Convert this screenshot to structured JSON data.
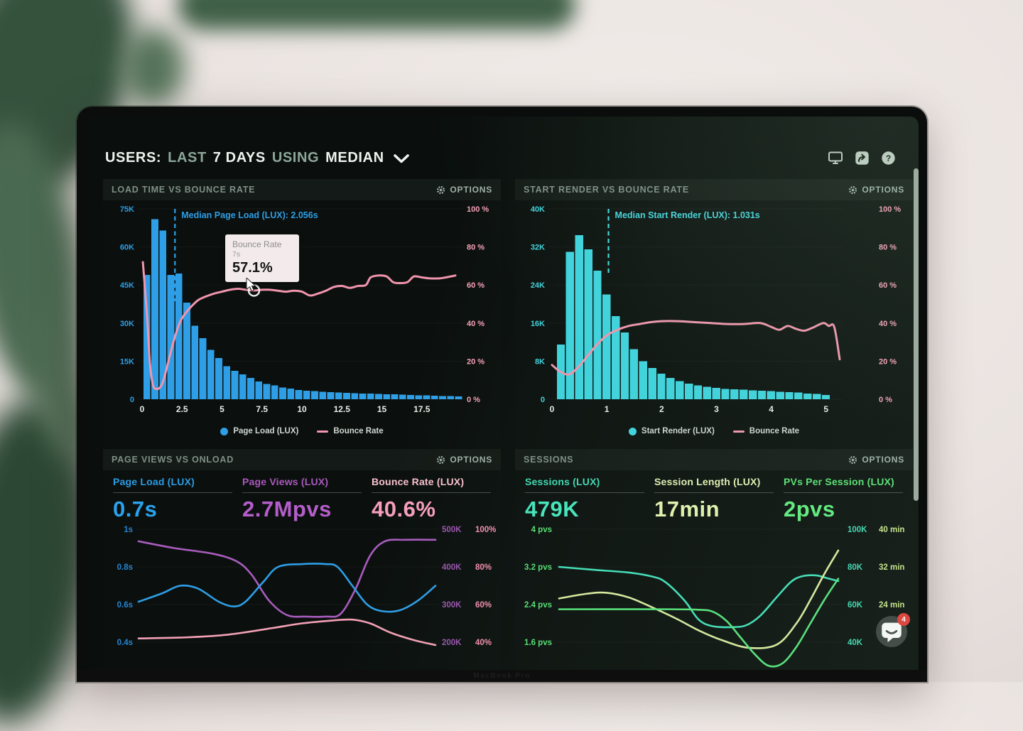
{
  "laptop": {
    "brand_label": "MacBook Pro"
  },
  "header": {
    "title_users": "USERS:",
    "title_last": "LAST",
    "title_days": "7 DAYS",
    "title_using": "USING",
    "title_median": "MEDIAN",
    "icons": {
      "monitor": "display-screen",
      "share": "share-arrow",
      "help": "question-mark",
      "chevron": "chevron-down",
      "options": "gear",
      "chat": "speech-bubble"
    }
  },
  "colors": {
    "blue": "#2e9ee6",
    "cyan": "#3ed4df",
    "pink_line": "#f295ae",
    "pink_label": "#f6a0b8",
    "purple": "#ac58c2",
    "teal": "#41e0b8",
    "yellow_green": "#dcedaa",
    "green": "#5ee573",
    "badge_red": "#e33b36",
    "panel_title": "#7e8f87",
    "screen_bg": "#0a0f0d"
  },
  "panels": {
    "load_time": {
      "title": "LOAD TIME VS BOUNCE RATE",
      "options": "OPTIONS",
      "annotation": "Median Page Load (LUX): 2.056s",
      "tooltip": {
        "series": "Bounce Rate",
        "x": "7s",
        "value": "57.1%"
      },
      "legend": [
        {
          "label": "Page Load (LUX)",
          "color": "#2e9ee6"
        },
        {
          "label": "Bounce Rate",
          "color": "#f295ae"
        }
      ]
    },
    "start_render": {
      "title": "START RENDER VS BOUNCE RATE",
      "options": "OPTIONS",
      "annotation": "Median Start Render (LUX): 1.031s",
      "legend": [
        {
          "label": "Start Render (LUX)",
          "color": "#3ed4df"
        },
        {
          "label": "Bounce Rate",
          "color": "#f295ae"
        }
      ]
    },
    "pageviews": {
      "title": "PAGE VIEWS VS ONLOAD",
      "options": "OPTIONS",
      "metrics": [
        {
          "label": "Page Load (LUX)",
          "value": "0.7s",
          "label_color": "#2b9be4",
          "value_color": "#2aa3ee"
        },
        {
          "label": "Page Views (LUX)",
          "value": "2.7Mpvs",
          "label_color": "#a958bc",
          "value_color": "#b55ecb"
        },
        {
          "label": "Bounce Rate (LUX)",
          "value": "40.6%",
          "label_color": "#f8c0cf",
          "value_color": "#f79fbc"
        }
      ]
    },
    "sessions": {
      "title": "SESSIONS",
      "options": "OPTIONS",
      "metrics": [
        {
          "label": "Sessions (LUX)",
          "value": "479K",
          "label_color": "#3fd9b2",
          "value_color": "#45e6bd"
        },
        {
          "label": "Session Length (LUX)",
          "value": "17min",
          "label_color": "#e3f0b3",
          "value_color": "#e4f4ae"
        },
        {
          "label": "PVs Per Session (LUX)",
          "value": "2pvs",
          "label_color": "#58e373",
          "value_color": "#5fee7e"
        }
      ]
    }
  },
  "chat": {
    "badge": "4"
  },
  "chart_data": [
    {
      "id": "load_time",
      "type": "bar",
      "title": "LOAD TIME VS BOUNCE RATE",
      "x_axis": {
        "min": 0,
        "max": 20,
        "ticks": [
          "0",
          "2.5",
          "5",
          "7.5",
          "10",
          "12.5",
          "15",
          "17.5"
        ],
        "tick_vals": [
          0,
          2.5,
          5,
          7.5,
          10,
          12.5,
          15,
          17.5
        ]
      },
      "y_left": {
        "max_k": 75,
        "ticks": [
          "75K",
          "60K",
          "45K",
          "30K",
          "15K",
          "0"
        ],
        "color": "#2e9ee6"
      },
      "y_right": {
        "max": 100,
        "ticks": [
          "100 %",
          "80 %",
          "60 %",
          "40 %",
          "20 %",
          "0 %"
        ],
        "color": "#f6a0b8"
      },
      "bars": {
        "name": "Page Load (LUX)",
        "color": "#2e9ee6",
        "bin_start": 0.05,
        "bin_width": 0.5,
        "values_k": [
          49,
          71,
          66.5,
          49,
          49.5,
          38,
          29,
          24,
          19.5,
          16.2,
          13,
          11.2,
          9.8,
          8.4,
          7,
          6,
          5.4,
          4.6,
          4.2,
          3.6,
          3.4,
          3.2,
          3,
          2.8,
          2.6,
          2.5,
          2.4,
          2.3,
          2.2,
          2.1,
          2,
          1.9,
          1.8,
          1.7,
          1.6,
          1.5,
          1.4,
          1.3,
          1.2,
          1.1
        ]
      },
      "line": {
        "name": "Bounce Rate",
        "color": "#f295ae",
        "points": [
          [
            0.05,
            72
          ],
          [
            0.3,
            45
          ],
          [
            0.5,
            18
          ],
          [
            0.7,
            7
          ],
          [
            0.9,
            5.5
          ],
          [
            1.1,
            6
          ],
          [
            1.3,
            9
          ],
          [
            1.5,
            15
          ],
          [
            1.8,
            25
          ],
          [
            2.1,
            34
          ],
          [
            2.4,
            41
          ],
          [
            2.7,
            45
          ],
          [
            3,
            48
          ],
          [
            3.5,
            52
          ],
          [
            4,
            54
          ],
          [
            4.5,
            55.5
          ],
          [
            5,
            56.5
          ],
          [
            5.5,
            57.5
          ],
          [
            6,
            58
          ],
          [
            6.5,
            57.5
          ],
          [
            7,
            57.1
          ],
          [
            7.5,
            57.5
          ],
          [
            8,
            57.5
          ],
          [
            8.5,
            57
          ],
          [
            9,
            56.5
          ],
          [
            9.5,
            57
          ],
          [
            10,
            56.5
          ],
          [
            10.5,
            54.5
          ],
          [
            11,
            55.5
          ],
          [
            11.5,
            57
          ],
          [
            12,
            59
          ],
          [
            12.5,
            59.5
          ],
          [
            13,
            58.5
          ],
          [
            13.5,
            59.5
          ],
          [
            14,
            60
          ],
          [
            14.3,
            64
          ],
          [
            14.8,
            65
          ],
          [
            15.3,
            64.5
          ],
          [
            15.7,
            61.5
          ],
          [
            16.1,
            61
          ],
          [
            16.6,
            61.5
          ],
          [
            17,
            64.5
          ],
          [
            17.5,
            64
          ],
          [
            18,
            63.5
          ],
          [
            18.6,
            63.5
          ],
          [
            19,
            64
          ],
          [
            19.6,
            65
          ]
        ]
      },
      "median_line": {
        "x": 2.056,
        "label": "Median Page Load (LUX): 2.056s",
        "color": "#2e9ee6"
      },
      "hover_point": {
        "x": 7,
        "y": 57.1
      }
    },
    {
      "id": "start_render",
      "type": "bar",
      "title": "START RENDER VS BOUNCE RATE",
      "x_axis": {
        "min": 0,
        "max": 5.25,
        "ticks": [
          "0",
          "1",
          "2",
          "3",
          "4",
          "5"
        ],
        "tick_vals": [
          0,
          1,
          2,
          3,
          4,
          5
        ]
      },
      "y_left": {
        "max_k": 40,
        "ticks": [
          "40K",
          "32K",
          "24K",
          "16K",
          "8K",
          "0"
        ],
        "color": "#3ed4df"
      },
      "y_right": {
        "max": 100,
        "ticks": [
          "100 %",
          "80 %",
          "60 %",
          "40 %",
          "20 %",
          "0 %"
        ],
        "color": "#f6a0b8"
      },
      "bars": {
        "name": "Start Render (LUX)",
        "color": "#3ed4df",
        "bin_start": 0.08,
        "bin_width": 0.1667,
        "values_k": [
          11.5,
          31,
          34.5,
          31.5,
          27,
          22,
          17.5,
          14,
          10.5,
          8,
          6.6,
          5.4,
          4.5,
          3.8,
          3.3,
          2.9,
          2.6,
          2.4,
          2.2,
          2.1,
          2,
          1.9,
          1.8,
          1.7,
          1.6,
          1.5,
          1.4,
          1.2,
          1.1,
          0.9
        ]
      },
      "line": {
        "name": "Bounce Rate",
        "color": "#f295ae",
        "points": [
          [
            0,
            18
          ],
          [
            0.15,
            14.5
          ],
          [
            0.3,
            13
          ],
          [
            0.45,
            16
          ],
          [
            0.6,
            21
          ],
          [
            0.8,
            28
          ],
          [
            1,
            33.5
          ],
          [
            1.2,
            36.5
          ],
          [
            1.4,
            38.5
          ],
          [
            1.6,
            39.5
          ],
          [
            1.8,
            40.5
          ],
          [
            2,
            41
          ],
          [
            2.3,
            41
          ],
          [
            2.6,
            40.5
          ],
          [
            2.9,
            40
          ],
          [
            3.2,
            39.5
          ],
          [
            3.5,
            39.5
          ],
          [
            3.8,
            40
          ],
          [
            4,
            38
          ],
          [
            4.15,
            36.5
          ],
          [
            4.3,
            38.5
          ],
          [
            4.45,
            37
          ],
          [
            4.6,
            36
          ],
          [
            4.75,
            37.5
          ],
          [
            4.95,
            40
          ],
          [
            5.05,
            38.5
          ],
          [
            5.15,
            38
          ],
          [
            5.25,
            21
          ]
        ]
      },
      "median_line": {
        "x": 1.031,
        "label": "Median Start Render (LUX): 1.031s",
        "color": "#45d6e0"
      }
    },
    {
      "id": "pageviews_onload",
      "type": "line",
      "title": "PAGE VIEWS VS ONLOAD",
      "left_ticks": {
        "color": "#2784cf",
        "labels": [
          "1s",
          "0.8s",
          "0.6s",
          "0.4s"
        ]
      },
      "right_ticks": {
        "col1": {
          "color": "#9a55af",
          "labels": [
            "500K",
            "400K",
            "300K",
            "200K"
          ]
        },
        "col2": {
          "color": "#f48fb0",
          "labels": [
            "100%",
            "80%",
            "60%",
            "40%"
          ]
        }
      },
      "series": [
        {
          "name": "Page Views (LUX)",
          "color": "#a95cbe",
          "range": [
            500,
            200
          ],
          "points": [
            [
              0,
              468
            ],
            [
              0.12,
              450
            ],
            [
              0.25,
              435
            ],
            [
              0.33,
              415
            ],
            [
              0.38,
              380
            ],
            [
              0.44,
              310
            ],
            [
              0.5,
              272
            ],
            [
              0.56,
              268
            ],
            [
              0.63,
              268
            ],
            [
              0.68,
              275
            ],
            [
              0.73,
              340
            ],
            [
              0.78,
              430
            ],
            [
              0.83,
              468
            ],
            [
              0.9,
              472
            ],
            [
              1,
              472
            ]
          ]
        },
        {
          "name": "Page Load (LUX)",
          "color": "#2e9ee6",
          "range": [
            1.0,
            0.4
          ],
          "points": [
            [
              0,
              0.615
            ],
            [
              0.08,
              0.66
            ],
            [
              0.14,
              0.7
            ],
            [
              0.2,
              0.685
            ],
            [
              0.27,
              0.615
            ],
            [
              0.32,
              0.59
            ],
            [
              0.36,
              0.615
            ],
            [
              0.42,
              0.72
            ],
            [
              0.47,
              0.8
            ],
            [
              0.55,
              0.815
            ],
            [
              0.63,
              0.815
            ],
            [
              0.67,
              0.8
            ],
            [
              0.72,
              0.7
            ],
            [
              0.77,
              0.6
            ],
            [
              0.82,
              0.565
            ],
            [
              0.88,
              0.57
            ],
            [
              0.94,
              0.62
            ],
            [
              1,
              0.7
            ]
          ]
        },
        {
          "name": "Bounce Rate (LUX)",
          "color": "#f4a0b5",
          "range": [
            100,
            40
          ],
          "points": [
            [
              0,
              42
            ],
            [
              0.15,
              42.5
            ],
            [
              0.3,
              44
            ],
            [
              0.45,
              47.5
            ],
            [
              0.55,
              50
            ],
            [
              0.65,
              51.5
            ],
            [
              0.72,
              52
            ],
            [
              0.78,
              50
            ],
            [
              0.85,
              45
            ],
            [
              0.93,
              41
            ],
            [
              1,
              38.5
            ]
          ]
        }
      ]
    },
    {
      "id": "sessions",
      "type": "line",
      "title": "SESSIONS",
      "left_ticks": {
        "color": "#56df72",
        "labels": [
          "4 pvs",
          "3.2 pvs",
          "2.4 pvs",
          "1.6 pvs"
        ]
      },
      "right_ticks": {
        "col1": {
          "color": "#3fd9b2",
          "labels": [
            "100K",
            "80K",
            "60K",
            "40K"
          ]
        },
        "col2": {
          "color": "#c9e68c",
          "labels": [
            "40 min",
            "32 min",
            "24 min",
            ""
          ]
        }
      },
      "series": [
        {
          "name": "Sessions (LUX)",
          "color": "#40dfb7",
          "range": [
            100,
            40
          ],
          "points": [
            [
              0,
              80
            ],
            [
              0.12,
              78.5
            ],
            [
              0.25,
              77
            ],
            [
              0.33,
              75
            ],
            [
              0.38,
              72
            ],
            [
              0.45,
              62
            ],
            [
              0.5,
              52
            ],
            [
              0.55,
              48.5
            ],
            [
              0.62,
              48
            ],
            [
              0.67,
              49
            ],
            [
              0.72,
              54
            ],
            [
              0.78,
              64
            ],
            [
              0.83,
              72
            ],
            [
              0.87,
              75
            ],
            [
              0.92,
              75.5
            ],
            [
              0.96,
              74
            ],
            [
              1,
              72.5
            ]
          ]
        },
        {
          "name": "Session Length (LUX)",
          "color": "#d9eb9e",
          "range": [
            40,
            16
          ],
          "points": [
            [
              0,
              25.3
            ],
            [
              0.1,
              26.3
            ],
            [
              0.17,
              26.5
            ],
            [
              0.25,
              25.5
            ],
            [
              0.33,
              23.5
            ],
            [
              0.42,
              21
            ],
            [
              0.5,
              18.5
            ],
            [
              0.58,
              16.5
            ],
            [
              0.68,
              14.8
            ],
            [
              0.78,
              15.5
            ],
            [
              0.85,
              20
            ],
            [
              0.9,
              25
            ],
            [
              0.95,
              30.5
            ],
            [
              1,
              35.5
            ]
          ]
        },
        {
          "name": "PVs Per Session (LUX)",
          "color": "#55e37a",
          "range": [
            4,
            1.6
          ],
          "points": [
            [
              0,
              2.3
            ],
            [
              0.4,
              2.3
            ],
            [
              0.5,
              2.29
            ],
            [
              0.55,
              2.25
            ],
            [
              0.6,
              2.05
            ],
            [
              0.65,
              1.7
            ],
            [
              0.7,
              1.35
            ],
            [
              0.75,
              1.1
            ],
            [
              0.8,
              1.15
            ],
            [
              0.85,
              1.5
            ],
            [
              0.9,
              2.0
            ],
            [
              0.95,
              2.5
            ],
            [
              1,
              2.95
            ]
          ]
        }
      ]
    }
  ]
}
